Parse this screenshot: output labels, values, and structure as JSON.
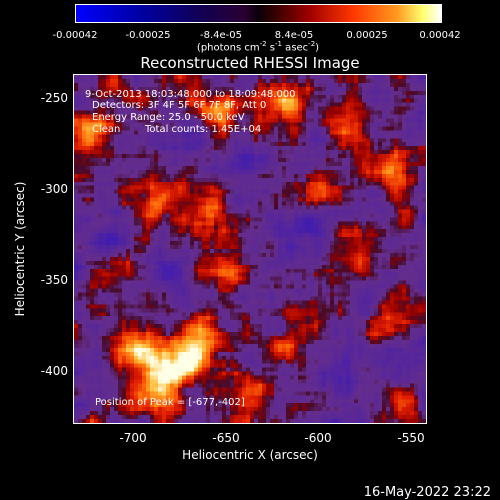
{
  "colorbar": {
    "ticks": [
      "-0.00042",
      "-0.00025",
      "-8.4e-05",
      "8.4e-05",
      "0.00025",
      "0.00042"
    ],
    "units_main": "(photons cm",
    "units_exp1": "-2",
    "units_mid1": " s",
    "units_exp2": "-1",
    "units_mid2": " asec",
    "units_exp3": "-2",
    "units_end": ")",
    "range": [
      -0.00042,
      0.00042
    ]
  },
  "chart_data": {
    "type": "heatmap",
    "title": "Reconstructed RHESSI Image",
    "xlabel": "Heliocentric X (arcsec)",
    "ylabel": "Heliocentric Y (arcsec)",
    "xlim": [
      -733,
      -542
    ],
    "ylim": [
      -430,
      -235
    ],
    "xticks": [
      -700,
      -650,
      -600,
      -550
    ],
    "yticks": [
      -250,
      -300,
      -350,
      -400
    ],
    "annotations": {
      "time": "9-Oct-2013 18:03:48.000 to 18:09:48.000",
      "detectors": "Detectors: 3F 4F 5F 6F 7F 8F, Att 0",
      "energy": "Energy Range: 25.0 - 50.0 keV",
      "method": "Clean",
      "counts": "Total counts: 1.45E+04",
      "peak": "Position of Peak = [-677,-402]"
    },
    "peak": [
      -677,
      -402
    ],
    "bright_regions": [
      {
        "x": -678,
        "y": -398,
        "level": 1.0
      },
      {
        "x": -700,
        "y": -390,
        "level": 0.85
      },
      {
        "x": -665,
        "y": -385,
        "level": 0.8
      },
      {
        "x": -690,
        "y": -415,
        "level": 0.7
      },
      {
        "x": -728,
        "y": -265,
        "level": 0.8
      },
      {
        "x": -655,
        "y": -255,
        "level": 0.7
      },
      {
        "x": -690,
        "y": -305,
        "level": 0.55
      },
      {
        "x": -660,
        "y": -310,
        "level": 0.45
      },
      {
        "x": -620,
        "y": -250,
        "level": 0.6
      },
      {
        "x": -585,
        "y": -255,
        "level": 0.6
      },
      {
        "x": -560,
        "y": -290,
        "level": 0.75
      },
      {
        "x": -600,
        "y": -300,
        "level": 0.5
      },
      {
        "x": -580,
        "y": -330,
        "level": 0.45
      },
      {
        "x": -650,
        "y": -345,
        "level": 0.5
      },
      {
        "x": -615,
        "y": -385,
        "level": 0.45
      },
      {
        "x": -640,
        "y": -410,
        "level": 0.5
      },
      {
        "x": -560,
        "y": -375,
        "level": 0.5
      },
      {
        "x": -555,
        "y": -415,
        "level": 0.4
      },
      {
        "x": -710,
        "y": -345,
        "level": 0.4
      }
    ],
    "dark_regions": [
      {
        "x": -685,
        "y": -345,
        "level": -0.4
      },
      {
        "x": -610,
        "y": -325,
        "level": -0.45
      },
      {
        "x": -640,
        "y": -280,
        "level": -0.35
      },
      {
        "x": -720,
        "y": -325,
        "level": -0.3
      },
      {
        "x": -590,
        "y": -400,
        "level": -0.35
      },
      {
        "x": -555,
        "y": -395,
        "level": -0.45
      },
      {
        "x": -670,
        "y": -270,
        "level": -0.3
      }
    ]
  },
  "footer": "16-May-2022 23:22"
}
